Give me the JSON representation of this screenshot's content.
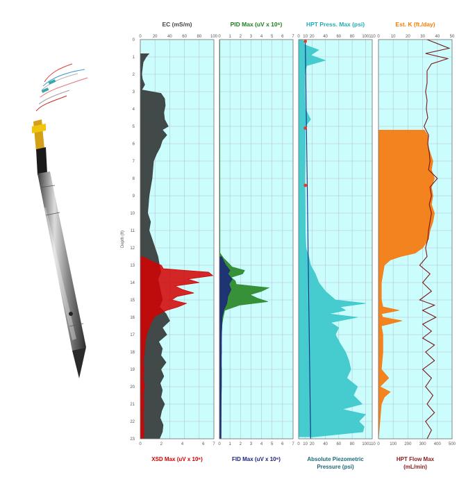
{
  "figure": {
    "depth_axis_label": "Depth (ft)",
    "depth_range": [
      0,
      23
    ],
    "depth_ticks": [
      0,
      1,
      2,
      3,
      4,
      5,
      6,
      7,
      8,
      9,
      10,
      11,
      12,
      13,
      14,
      15,
      16,
      17,
      18,
      19,
      20,
      21,
      22,
      23
    ]
  },
  "chart_data": [
    {
      "type": "area",
      "orientation": "vertical-depth",
      "top_title": "EC (mS/m)",
      "bottom_title": "XSD Max (uV x 10⁶)",
      "top_color": "#444444",
      "bottom_color": "#d40000",
      "top_axis": {
        "range": [
          0,
          100
        ],
        "ticks": [
          0,
          20,
          40,
          60,
          80,
          100
        ]
      },
      "bottom_axis": {
        "range": [
          0,
          7
        ],
        "ticks": [
          0,
          2,
          4,
          6,
          7
        ]
      },
      "series": [
        {
          "name": "EC (mS/m)",
          "axis": "top",
          "color": "#3a3f3f",
          "depth": [
            0.8,
            1.0,
            1.3,
            1.6,
            2.0,
            2.3,
            2.6,
            2.9,
            3.1,
            3.4,
            3.8,
            4.2,
            4.6,
            5.0,
            5.2,
            5.5,
            5.8,
            6.2,
            6.6,
            7.0,
            7.5,
            8.0,
            8.5,
            9.0,
            9.5,
            10.0,
            10.5,
            11.0,
            11.5,
            12.0,
            12.5,
            13.0,
            13.4,
            13.8,
            14.2,
            14.6,
            15.0,
            15.4,
            15.8,
            16.2,
            16.6,
            17.0,
            17.4,
            17.8,
            18.2,
            18.6,
            19.0,
            19.4,
            19.8,
            20.2,
            20.6,
            21.0,
            21.4,
            21.8,
            22.2,
            22.6,
            23.0
          ],
          "values": [
            12,
            8,
            4,
            3,
            2,
            3,
            6,
            2,
            28,
            33,
            34,
            32,
            33,
            38,
            30,
            36,
            30,
            27,
            22,
            18,
            17,
            16,
            14,
            12,
            11,
            10,
            14,
            12,
            16,
            20,
            24,
            26,
            28,
            24,
            26,
            28,
            30,
            26,
            35,
            40,
            30,
            36,
            25,
            30,
            28,
            35,
            28,
            32,
            27,
            30,
            28,
            33,
            29,
            27,
            31,
            30,
            26
          ]
        },
        {
          "name": "XSD Max (uV x 10⁶)",
          "axis": "bottom",
          "color": "#d40000",
          "depth": [
            12.5,
            12.8,
            13.0,
            13.2,
            13.4,
            13.6,
            13.8,
            14.0,
            14.2,
            14.4,
            14.6,
            14.8,
            15.0,
            15.2,
            15.4,
            15.6,
            15.8,
            16.0,
            16.5,
            17.0,
            17.5,
            18.0,
            18.5,
            19.0,
            19.5,
            20.0,
            20.5,
            21.0,
            21.5,
            22.0,
            22.5,
            23.0
          ],
          "values": [
            0.2,
            1.2,
            2.0,
            2.2,
            6.5,
            6.9,
            4.5,
            5.6,
            3.3,
            4.0,
            5.1,
            3.5,
            3.0,
            4.4,
            3.6,
            2.5,
            1.8,
            1.3,
            0.9,
            0.6,
            0.45,
            0.4,
            0.3,
            0.35,
            0.3,
            0.4,
            0.3,
            0.35,
            0.3,
            0.3,
            0.35,
            0.3
          ]
        }
      ]
    },
    {
      "type": "area",
      "orientation": "vertical-depth",
      "top_title": "PID Max (uV x 10⁶)",
      "bottom_title": "FID Max (uV x 10⁶)",
      "top_color": "#1e7f1e",
      "bottom_color": "#1a237e",
      "top_axis": {
        "range": [
          0,
          7
        ],
        "ticks": [
          0,
          1,
          2,
          3,
          4,
          5,
          6,
          7
        ]
      },
      "bottom_axis": {
        "range": [
          0,
          7
        ],
        "ticks": [
          0,
          1,
          2,
          3,
          4,
          5,
          6,
          7
        ]
      },
      "series": [
        {
          "name": "PID Max (uV x 10⁶)",
          "axis": "top",
          "color": "#2e8b2e",
          "depth": [
            0,
            12.3,
            12.6,
            12.9,
            13.1,
            13.3,
            13.5,
            13.7,
            13.9,
            14.1,
            14.3,
            14.5,
            14.7,
            14.9,
            15.1,
            15.3,
            15.6,
            16.0,
            16.4,
            17.0,
            17.5,
            18.0,
            18.5,
            19.0,
            20.0,
            21.0,
            22.0,
            23.0
          ],
          "values": [
            0.03,
            0.05,
            0.4,
            0.9,
            1.2,
            2.4,
            2.2,
            1.1,
            1.5,
            1.6,
            4.7,
            4.0,
            2.9,
            3.6,
            4.6,
            1.9,
            0.5,
            0.35,
            0.25,
            0.2,
            0.18,
            0.2,
            0.15,
            0.2,
            0.2,
            0.15,
            0.15,
            0.15
          ]
        },
        {
          "name": "FID Max (uV x 10⁶)",
          "axis": "bottom",
          "color": "#1a237e",
          "depth": [
            12.5,
            13.0,
            13.3,
            13.5,
            13.8,
            14.1,
            14.4,
            14.8,
            15.2,
            15.6,
            16.0,
            17.0,
            23.0
          ],
          "values": [
            0.2,
            0.6,
            1.0,
            0.8,
            1.2,
            0.9,
            1.1,
            0.8,
            0.7,
            0.4,
            0.25,
            0.2,
            0.15
          ]
        }
      ]
    },
    {
      "type": "area",
      "orientation": "vertical-depth",
      "top_title": "HPT Press. Max (psi)",
      "bottom_title": "Absolute Piezometric Pressure (psi)",
      "bottom_title_lines": [
        "Absolute Piezometric",
        "Pressure (psi)"
      ],
      "top_color": "#21aeb3",
      "bottom_color": "#1c6a7a",
      "top_axis": {
        "range": [
          0,
          110
        ],
        "ticks": [
          0,
          10,
          20,
          40,
          60,
          80,
          100,
          110
        ]
      },
      "bottom_axis": {
        "range": [
          0,
          110
        ],
        "ticks": [
          0,
          10,
          20,
          40,
          60,
          80,
          100,
          110
        ]
      },
      "series": [
        {
          "name": "HPT Press. Max (psi)",
          "axis": "top",
          "color": "#3ec9cc",
          "depth": [
            0,
            0.3,
            0.6,
            0.9,
            1.2,
            1.5,
            2.0,
            3.0,
            4.0,
            4.6,
            5.0,
            6.0,
            8.0,
            10.0,
            11.0,
            12.0,
            12.5,
            13.0,
            13.5,
            14.0,
            14.5,
            15.0,
            15.2,
            15.4,
            15.6,
            15.8,
            16.0,
            16.3,
            16.6,
            17.0,
            17.5,
            18.0,
            18.5,
            19.0,
            19.5,
            20.0,
            20.5,
            21.0,
            21.3,
            21.6,
            22.0,
            22.3,
            22.6,
            22.9
          ],
          "values": [
            6,
            9,
            30,
            18,
            40,
            12,
            9,
            9,
            10,
            18,
            10,
            10,
            9,
            10,
            10,
            11,
            15,
            18,
            25,
            30,
            40,
            55,
            100,
            62,
            70,
            45,
            88,
            48,
            60,
            55,
            62,
            70,
            75,
            78,
            72,
            88,
            82,
            95,
            65,
            100,
            90,
            98,
            96,
            20
          ]
        },
        {
          "name": "Absolute Piezometric Pressure (psi)",
          "axis": "bottom",
          "color": "#0e2a88",
          "depth": [
            0,
            23
          ],
          "values": [
            10,
            18
          ]
        }
      ],
      "markers": {
        "color": "#e53935",
        "depth": [
          0.1,
          5.1,
          8.4
        ]
      }
    },
    {
      "type": "area",
      "orientation": "vertical-depth",
      "top_title": "Est. K (ft./day)",
      "bottom_title": "HPT Flow Max (mL/min)",
      "bottom_title_lines": [
        "HPT Flow Max",
        "(mL/min)"
      ],
      "top_color": "#f57c00",
      "bottom_color": "#8b1a1a",
      "top_axis": {
        "range": [
          0,
          50
        ],
        "ticks": [
          0,
          10,
          20,
          30,
          40,
          50
        ]
      },
      "bottom_axis": {
        "range": [
          0,
          500
        ],
        "ticks": [
          0,
          100,
          200,
          300,
          400,
          500
        ]
      },
      "series": [
        {
          "name": "Est. K (ft./day)",
          "axis": "top",
          "color": "#f47c12",
          "depth": [
            5.2,
            5.6,
            6.0,
            6.5,
            7.0,
            7.5,
            8.0,
            8.5,
            9.0,
            9.5,
            10.0,
            10.5,
            11.0,
            11.5,
            12.0,
            12.3,
            12.5,
            12.7,
            13.0,
            14.0,
            15.0,
            15.4,
            15.6,
            15.8,
            16.0,
            16.2,
            16.5,
            17.0,
            18.0,
            19.0,
            19.5,
            20.0,
            20.3,
            20.6,
            21.0,
            22.0,
            23.0
          ],
          "values": [
            31,
            34,
            33,
            35,
            37,
            36,
            38,
            36,
            37,
            36,
            38,
            37,
            35,
            34,
            30,
            25,
            15,
            8,
            4,
            2,
            2,
            3,
            14,
            2,
            3,
            16,
            2,
            3,
            3,
            2,
            7,
            1,
            8,
            4,
            2,
            1,
            0
          ]
        },
        {
          "name": "HPT Flow Max (mL/min)",
          "axis": "bottom",
          "color": "#7a1414",
          "depth": [
            0,
            0.5,
            0.8,
            1.1,
            1.4,
            1.8,
            2.5,
            3.0,
            3.5,
            4.0,
            4.5,
            5.0,
            5.5,
            6.0,
            6.5,
            7.0,
            7.5,
            8.0,
            8.5,
            9.0,
            9.5,
            10.0,
            10.5,
            11.0,
            11.5,
            12.0,
            12.5,
            13.0,
            13.5,
            14.0,
            14.5,
            15.0,
            15.3,
            15.6,
            16.0,
            16.4,
            16.8,
            17.2,
            17.6,
            18.0,
            18.5,
            19.0,
            19.5,
            20.0,
            20.5,
            21.0,
            21.5,
            22.0,
            22.5,
            23.0
          ],
          "values": [
            330,
            480,
            320,
            470,
            360,
            330,
            330,
            320,
            330,
            325,
            335,
            310,
            340,
            335,
            345,
            350,
            340,
            400,
            350,
            360,
            345,
            360,
            350,
            340,
            335,
            320,
            330,
            280,
            350,
            300,
            360,
            280,
            380,
            300,
            390,
            300,
            360,
            300,
            380,
            320,
            380,
            300,
            360,
            320,
            370,
            330,
            380,
            320,
            360,
            330
          ]
        }
      ]
    }
  ]
}
